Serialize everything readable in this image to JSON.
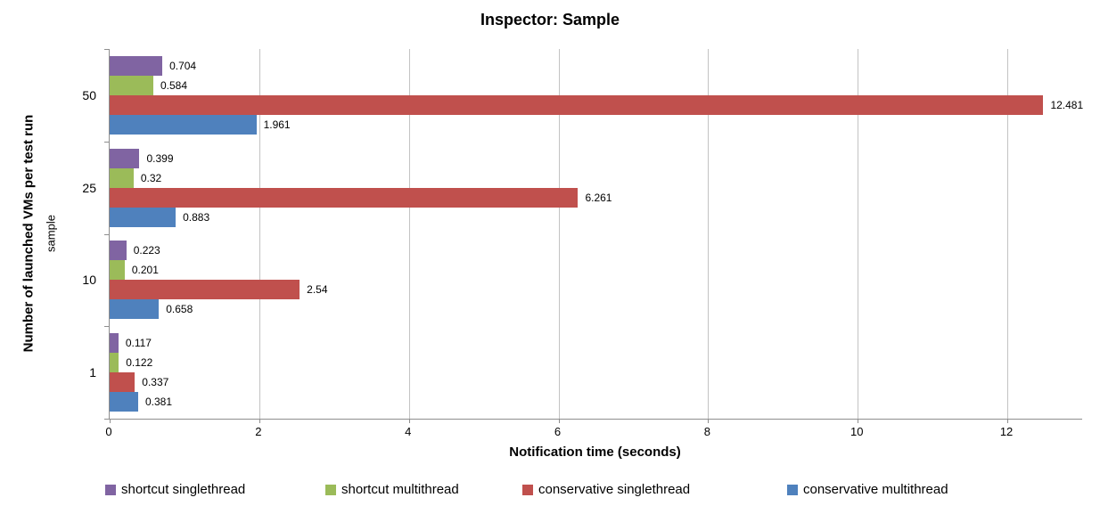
{
  "title": "Inspector: Sample",
  "chart_data": {
    "type": "bar",
    "orientation": "horizontal",
    "title": "Inspector: Sample",
    "categories": [
      "50",
      "25",
      "10",
      "1"
    ],
    "series": [
      {
        "name": "shortcut singlethread",
        "color": "#8064A2",
        "values": [
          0.704,
          0.399,
          0.223,
          0.117
        ]
      },
      {
        "name": "shortcut multithread",
        "color": "#9BBB59",
        "values": [
          0.584,
          0.32,
          0.201,
          0.122
        ]
      },
      {
        "name": "conservative singlethread",
        "color": "#C0504D",
        "values": [
          12.481,
          6.261,
          2.54,
          0.337
        ]
      },
      {
        "name": "conservative multithread",
        "color": "#4F81BD",
        "values": [
          1.961,
          0.883,
          0.658,
          0.381
        ]
      }
    ],
    "xlabel": "Notification time (seconds)",
    "ylabel": "Number of launched VMs per test run",
    "ylabel_secondary": "sample",
    "xticks": [
      0,
      2,
      4,
      6,
      8,
      10,
      12
    ],
    "xlim": [
      0,
      13
    ],
    "grid": "vertical-gridlines-on",
    "legend_position": "bottom",
    "value_labels_shown": true
  },
  "colors": {
    "background": "#FFFFFF",
    "gridline": "#C3C3C3",
    "axis_line": "#8E8E8E",
    "text": "#000000"
  }
}
